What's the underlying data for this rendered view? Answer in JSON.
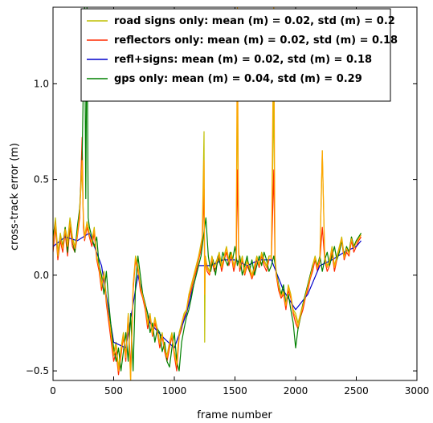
{
  "chart_data": {
    "type": "line",
    "title": "",
    "xlabel": "frame number",
    "ylabel": "cross-track error (m)",
    "xlim": [
      0,
      3000
    ],
    "ylim": [
      -0.55,
      1.4
    ],
    "xticks": [
      0,
      500,
      1000,
      1500,
      2000,
      2500,
      3000
    ],
    "xtick_labels": [
      "0",
      "500",
      "1000",
      "1500",
      "2000",
      "2500",
      "3000"
    ],
    "yticks": [
      -0.5,
      0.0,
      0.5,
      1.0
    ],
    "ytick_labels": [
      "−0.5",
      "0.0",
      "0.5",
      "1.0"
    ],
    "grid": false,
    "legend_position": "top-center",
    "series": [
      {
        "name": "road signs only: mean (m) = 0.02,  std (m) = 0.2",
        "color": "#bfbf00",
        "x": [
          0,
          20,
          40,
          60,
          80,
          100,
          120,
          140,
          160,
          180,
          200,
          220,
          240,
          250,
          260,
          280,
          300,
          320,
          340,
          360,
          380,
          400,
          420,
          440,
          460,
          480,
          500,
          520,
          540,
          560,
          580,
          600,
          620,
          640,
          660,
          680,
          700,
          720,
          740,
          760,
          780,
          800,
          820,
          840,
          860,
          880,
          900,
          920,
          940,
          960,
          980,
          1000,
          1020,
          1040,
          1060,
          1080,
          1100,
          1120,
          1140,
          1160,
          1180,
          1200,
          1215,
          1230,
          1245,
          1250,
          1255,
          1270,
          1290,
          1310,
          1330,
          1350,
          1370,
          1390,
          1410,
          1430,
          1450,
          1470,
          1490,
          1510,
          1520,
          1530,
          1540,
          1560,
          1580,
          1600,
          1620,
          1640,
          1660,
          1680,
          1700,
          1720,
          1740,
          1760,
          1780,
          1800,
          1820,
          1830,
          1840,
          1860,
          1880,
          1900,
          1920,
          1940,
          1960,
          1980,
          2000,
          2020,
          2040,
          2060,
          2080,
          2100,
          2120,
          2140,
          2160,
          2180,
          2200,
          2220,
          2240,
          2260,
          2280,
          2300,
          2320,
          2340,
          2360,
          2380,
          2400,
          2420,
          2440,
          2460,
          2480,
          2500,
          2520,
          2540
        ],
        "values": [
          0.18,
          0.3,
          0.12,
          0.22,
          0.15,
          0.25,
          0.18,
          0.3,
          0.2,
          0.15,
          0.22,
          0.35,
          0.55,
          0.3,
          0.2,
          0.28,
          0.22,
          0.18,
          0.25,
          0.1,
          0.05,
          -0.05,
          0.02,
          -0.12,
          -0.2,
          -0.3,
          -0.4,
          -0.35,
          -0.48,
          -0.38,
          -0.3,
          -0.42,
          -0.2,
          -0.55,
          -0.05,
          0.1,
          0.05,
          -0.05,
          -0.1,
          -0.15,
          -0.25,
          -0.2,
          -0.3,
          -0.22,
          -0.28,
          -0.35,
          -0.3,
          -0.38,
          -0.42,
          -0.35,
          -0.3,
          -0.4,
          -0.45,
          -0.3,
          -0.25,
          -0.2,
          -0.18,
          -0.1,
          -0.05,
          0.0,
          0.05,
          0.1,
          0.15,
          0.2,
          0.75,
          -0.35,
          0.1,
          0.05,
          0.02,
          0.1,
          0.05,
          0.08,
          0.12,
          0.05,
          0.1,
          0.15,
          0.08,
          0.12,
          0.05,
          0.1,
          1.05,
          0.15,
          0.05,
          0.1,
          0.02,
          0.08,
          0.05,
          0.0,
          0.05,
          0.1,
          0.06,
          0.12,
          0.08,
          0.05,
          0.1,
          0.1,
          0.95,
          0.1,
          0.02,
          -0.05,
          -0.1,
          -0.08,
          -0.15,
          -0.05,
          -0.1,
          -0.18,
          -0.2,
          -0.25,
          -0.2,
          -0.15,
          -0.1,
          -0.05,
          0.0,
          0.05,
          0.1,
          0.05,
          0.1,
          0.65,
          0.1,
          0.05,
          0.08,
          0.15,
          0.05,
          0.1,
          0.15,
          0.2,
          0.1,
          0.15,
          0.12,
          0.2,
          0.15,
          0.18,
          0.2,
          0.22
        ]
      },
      {
        "name": "reflectors only: mean (m) = 0.02,  std (m) = 0.18",
        "color": "#ff2a00",
        "x": [
          0,
          20,
          40,
          60,
          80,
          100,
          120,
          140,
          160,
          180,
          200,
          220,
          240,
          250,
          260,
          280,
          300,
          320,
          340,
          360,
          380,
          400,
          420,
          440,
          460,
          480,
          500,
          520,
          540,
          560,
          580,
          600,
          620,
          640,
          660,
          680,
          700,
          720,
          740,
          760,
          780,
          800,
          820,
          840,
          860,
          880,
          900,
          920,
          940,
          960,
          980,
          1000,
          1020,
          1040,
          1060,
          1080,
          1100,
          1120,
          1140,
          1160,
          1180,
          1200,
          1215,
          1230,
          1245,
          1250,
          1255,
          1270,
          1290,
          1310,
          1330,
          1350,
          1370,
          1390,
          1410,
          1430,
          1450,
          1470,
          1490,
          1510,
          1520,
          1530,
          1540,
          1560,
          1580,
          1600,
          1620,
          1640,
          1660,
          1680,
          1700,
          1720,
          1740,
          1760,
          1780,
          1800,
          1820,
          1830,
          1840,
          1860,
          1880,
          1900,
          1920,
          1940,
          1960,
          1980,
          2000,
          2020,
          2040,
          2060,
          2080,
          2100,
          2120,
          2140,
          2160,
          2180,
          2200,
          2220,
          2240,
          2260,
          2280,
          2300,
          2320,
          2340,
          2360,
          2380,
          2400,
          2420,
          2440,
          2460,
          2480,
          2500,
          2520,
          2540
        ],
        "values": [
          0.12,
          0.25,
          0.08,
          0.18,
          0.12,
          0.22,
          0.1,
          0.25,
          0.15,
          0.12,
          0.2,
          0.3,
          0.72,
          0.25,
          0.18,
          0.25,
          0.2,
          0.15,
          0.22,
          0.08,
          0.02,
          -0.08,
          0.0,
          -0.15,
          -0.25,
          -0.35,
          -0.45,
          -0.4,
          -0.52,
          -0.42,
          -0.32,
          -0.45,
          -0.22,
          -0.5,
          -0.08,
          0.08,
          0.02,
          -0.08,
          -0.12,
          -0.18,
          -0.28,
          -0.22,
          -0.32,
          -0.25,
          -0.3,
          -0.38,
          -0.32,
          -0.4,
          -0.45,
          -0.38,
          -0.32,
          -0.42,
          -0.5,
          -0.32,
          -0.28,
          -0.22,
          -0.2,
          -0.12,
          -0.08,
          -0.02,
          0.02,
          0.08,
          0.12,
          0.18,
          0.45,
          0.05,
          0.08,
          0.02,
          0.0,
          0.08,
          0.02,
          0.05,
          0.1,
          0.02,
          0.08,
          0.12,
          0.05,
          0.1,
          0.02,
          0.08,
          0.55,
          0.12,
          0.02,
          0.08,
          0.0,
          0.05,
          0.02,
          -0.02,
          0.02,
          0.08,
          0.04,
          0.1,
          0.05,
          0.02,
          0.08,
          0.08,
          0.55,
          0.08,
          0.0,
          -0.08,
          -0.12,
          -0.1,
          -0.18,
          -0.08,
          -0.12,
          -0.2,
          -0.25,
          -0.28,
          -0.22,
          -0.18,
          -0.12,
          -0.08,
          -0.02,
          0.02,
          0.08,
          0.02,
          0.08,
          0.25,
          0.08,
          0.02,
          0.05,
          0.12,
          0.02,
          0.08,
          0.12,
          0.18,
          0.08,
          0.12,
          0.1,
          0.18,
          0.12,
          0.15,
          0.18,
          0.2
        ]
      },
      {
        "name": "refl+signs: mean (m) = 0.02,  std (m) = 0.18",
        "color": "#0000cc",
        "x": [
          0,
          100,
          200,
          300,
          400,
          500,
          600,
          700,
          800,
          900,
          1000,
          1100,
          1200,
          1300,
          1400,
          1500,
          1600,
          1700,
          1800,
          1900,
          2000,
          2100,
          2200,
          2300,
          2400,
          2500,
          2540
        ],
        "values": [
          0.15,
          0.2,
          0.18,
          0.22,
          0.05,
          -0.35,
          -0.38,
          0.0,
          -0.25,
          -0.32,
          -0.38,
          -0.2,
          0.05,
          0.05,
          0.08,
          0.08,
          0.05,
          0.08,
          0.08,
          -0.08,
          -0.18,
          -0.1,
          0.05,
          0.08,
          0.12,
          0.15,
          0.18
        ]
      },
      {
        "name": "gps only: mean (m) = 0.04,  std (m) = 0.29",
        "color": "#008000",
        "x": [
          0,
          20,
          40,
          60,
          80,
          100,
          120,
          140,
          160,
          180,
          200,
          220,
          240,
          260,
          270,
          280,
          290,
          300,
          320,
          340,
          360,
          380,
          400,
          420,
          440,
          460,
          480,
          500,
          520,
          540,
          560,
          580,
          600,
          620,
          640,
          660,
          680,
          700,
          720,
          740,
          760,
          780,
          800,
          820,
          840,
          860,
          880,
          900,
          920,
          940,
          960,
          980,
          1000,
          1020,
          1040,
          1060,
          1080,
          1100,
          1120,
          1140,
          1160,
          1180,
          1200,
          1220,
          1240,
          1260,
          1280,
          1300,
          1320,
          1340,
          1360,
          1380,
          1400,
          1420,
          1440,
          1460,
          1480,
          1500,
          1520,
          1540,
          1560,
          1580,
          1600,
          1620,
          1640,
          1660,
          1680,
          1700,
          1720,
          1740,
          1760,
          1780,
          1800,
          1820,
          1840,
          1860,
          1880,
          1900,
          1920,
          1940,
          1960,
          1980,
          2000,
          2020,
          2040,
          2060,
          2080,
          2100,
          2120,
          2140,
          2160,
          2180,
          2200,
          2220,
          2240,
          2260,
          2280,
          2300,
          2320,
          2340,
          2360,
          2380,
          2400,
          2420,
          2440,
          2460,
          2480,
          2500,
          2520,
          2540
        ],
        "values": [
          0.2,
          0.28,
          0.1,
          0.2,
          0.15,
          0.25,
          0.12,
          0.28,
          0.18,
          0.12,
          0.25,
          0.35,
          0.6,
          1.4,
          0.4,
          1.4,
          0.3,
          0.25,
          0.2,
          0.15,
          0.2,
          0.05,
          0.0,
          -0.1,
          0.02,
          -0.15,
          -0.28,
          -0.38,
          -0.45,
          -0.38,
          -0.5,
          -0.4,
          -0.3,
          -0.45,
          -0.2,
          -0.5,
          -0.05,
          0.1,
          0.0,
          -0.1,
          -0.15,
          -0.2,
          -0.3,
          -0.25,
          -0.35,
          -0.28,
          -0.3,
          -0.4,
          -0.35,
          -0.45,
          -0.48,
          -0.38,
          -0.3,
          -0.45,
          -0.5,
          -0.35,
          -0.28,
          -0.22,
          -0.18,
          -0.12,
          -0.05,
          0.0,
          0.05,
          0.1,
          0.2,
          0.3,
          0.1,
          0.02,
          0.08,
          0.0,
          0.1,
          0.05,
          0.12,
          0.08,
          0.05,
          0.12,
          0.08,
          0.15,
          0.05,
          0.1,
          0.0,
          0.05,
          0.1,
          0.02,
          0.08,
          0.0,
          0.05,
          0.1,
          0.05,
          0.12,
          0.08,
          0.02,
          0.05,
          0.1,
          0.02,
          -0.05,
          -0.1,
          -0.05,
          -0.15,
          -0.1,
          -0.18,
          -0.25,
          -0.38,
          -0.28,
          -0.22,
          -0.15,
          -0.1,
          -0.05,
          0.0,
          0.05,
          0.08,
          0.05,
          0.1,
          0.02,
          0.08,
          0.12,
          0.05,
          0.1,
          0.15,
          0.08,
          0.12,
          0.18,
          0.1,
          0.15,
          0.12,
          0.2,
          0.15,
          0.18,
          0.2,
          0.22
        ]
      },
      {
        "name": "",
        "color": "#ffa500",
        "x": [
          0,
          20,
          40,
          60,
          80,
          100,
          120,
          140,
          160,
          180,
          200,
          220,
          240,
          250,
          260,
          280,
          300,
          320,
          340,
          360,
          380,
          400,
          420,
          440,
          460,
          480,
          500,
          520,
          540,
          560,
          580,
          600,
          620,
          640,
          660,
          680,
          700,
          720,
          740,
          760,
          780,
          800,
          820,
          840,
          860,
          880,
          900,
          920,
          940,
          960,
          980,
          1000,
          1020,
          1040,
          1060,
          1080,
          1100,
          1120,
          1140,
          1160,
          1180,
          1200,
          1215,
          1230,
          1245,
          1250,
          1255,
          1270,
          1290,
          1310,
          1330,
          1350,
          1370,
          1390,
          1410,
          1430,
          1450,
          1470,
          1490,
          1510,
          1520,
          1530,
          1540,
          1560,
          1580,
          1600,
          1620,
          1640,
          1660,
          1680,
          1700,
          1720,
          1740,
          1760,
          1780,
          1800,
          1820,
          1830,
          1840,
          1860,
          1880,
          1900,
          1920,
          1940,
          1960,
          1980,
          2000,
          2020,
          2040,
          2060,
          2080,
          2100,
          2120,
          2140,
          2160,
          2180,
          2200,
          2220,
          2240,
          2260,
          2280,
          2300,
          2320,
          2340,
          2360,
          2380,
          2400,
          2420,
          2440,
          2460,
          2480,
          2500,
          2520,
          2540
        ],
        "values": [
          0.15,
          0.28,
          0.1,
          0.2,
          0.14,
          0.24,
          0.15,
          0.28,
          0.18,
          0.14,
          0.21,
          0.33,
          0.6,
          0.28,
          0.19,
          0.27,
          0.21,
          0.17,
          0.24,
          0.09,
          0.04,
          -0.06,
          0.01,
          -0.13,
          -0.22,
          -0.32,
          -0.42,
          -0.37,
          -0.5,
          -0.4,
          -0.31,
          -0.43,
          -0.21,
          -0.55,
          -0.06,
          0.09,
          0.04,
          -0.06,
          -0.11,
          -0.16,
          -0.26,
          -0.21,
          -0.31,
          -0.23,
          -0.29,
          -0.36,
          -0.31,
          -0.39,
          -0.43,
          -0.36,
          -0.31,
          -0.41,
          -0.47,
          -0.31,
          -0.26,
          -0.21,
          -0.19,
          -0.11,
          -0.06,
          -0.01,
          0.04,
          0.09,
          0.14,
          0.19,
          0.6,
          -0.1,
          0.09,
          0.04,
          0.01,
          0.09,
          0.04,
          0.07,
          0.11,
          0.04,
          0.09,
          0.14,
          0.07,
          0.11,
          0.04,
          0.09,
          1.4,
          0.14,
          0.04,
          0.09,
          0.01,
          0.07,
          0.04,
          -0.01,
          0.04,
          0.09,
          0.05,
          0.11,
          0.07,
          0.04,
          0.09,
          0.09,
          1.4,
          0.09,
          0.01,
          -0.06,
          -0.11,
          -0.09,
          -0.16,
          -0.06,
          -0.11,
          -0.19,
          -0.22,
          -0.27,
          -0.21,
          -0.16,
          -0.11,
          -0.06,
          -0.01,
          0.04,
          0.09,
          0.04,
          0.09,
          0.65,
          0.09,
          0.04,
          0.07,
          0.14,
          0.04,
          0.09,
          0.14,
          0.19,
          0.09,
          0.14,
          0.11,
          0.19,
          0.14,
          0.17,
          0.19,
          0.21
        ]
      }
    ]
  }
}
